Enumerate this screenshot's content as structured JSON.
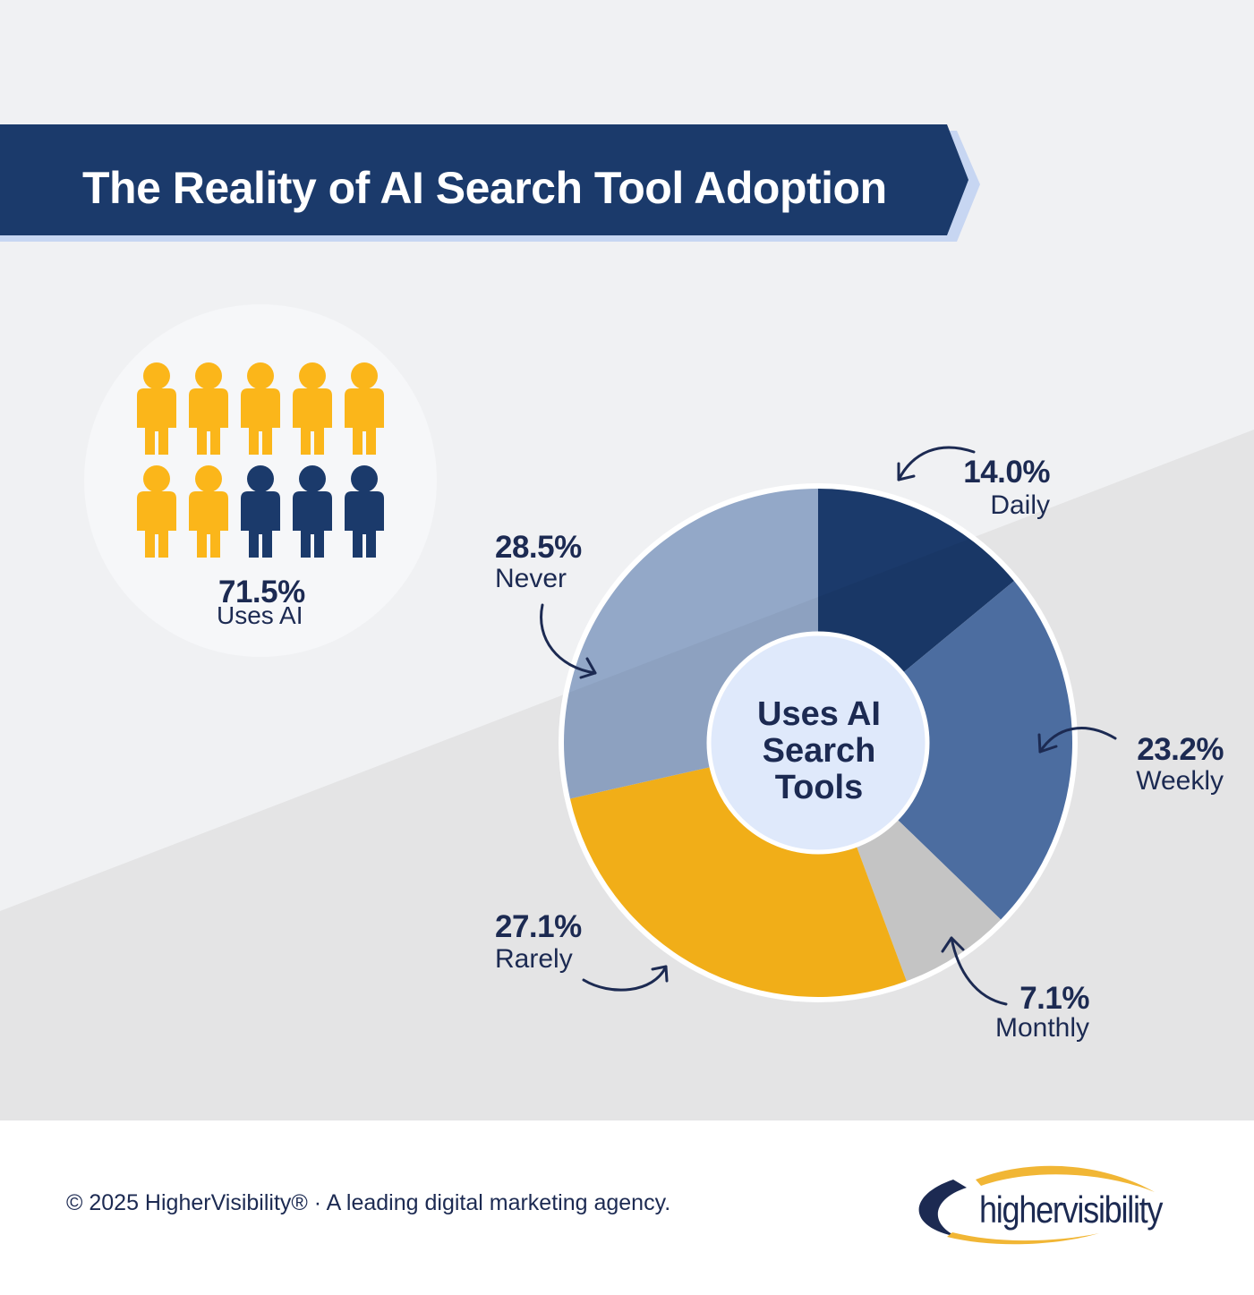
{
  "header": {
    "title": "The Reality of AI Search Tool Adoption"
  },
  "pictogram": {
    "value_label": "71.5%",
    "caption": "Uses AI",
    "total_icons": 10,
    "highlighted_icons": 7,
    "highlight_color": "#fbb61a",
    "base_color": "#1b3a6b"
  },
  "chart_data": {
    "type": "pie",
    "center_label": [
      "Uses AI",
      "Search",
      "Tools"
    ],
    "slices": [
      {
        "name": "Daily",
        "value": 14.0,
        "label": "14.0%",
        "color": "#1b3a6b"
      },
      {
        "name": "Weekly",
        "value": 23.2,
        "label": "23.2%",
        "color": "#5072a7"
      },
      {
        "name": "Monthly",
        "value": 7.1,
        "label": "7.1%",
        "color": "#cccccc"
      },
      {
        "name": "Rarely",
        "value": 27.1,
        "label": "27.1%",
        "color": "#fbb61a"
      },
      {
        "name": "Never",
        "value": 28.5,
        "label": "28.5%",
        "color": "#93a8c8"
      }
    ]
  },
  "footer": {
    "copyright": "© 2025 HigherVisibility® · A leading digital marketing agency.",
    "brand": "highervisibility"
  },
  "colors": {
    "navy": "#1b3a6b",
    "text": "#1c2a52",
    "gold": "#fbb61a",
    "bg_light": "#f0f1f3",
    "bg_dark": "#e4e4e5",
    "center_fill": "#dfe9fb"
  }
}
